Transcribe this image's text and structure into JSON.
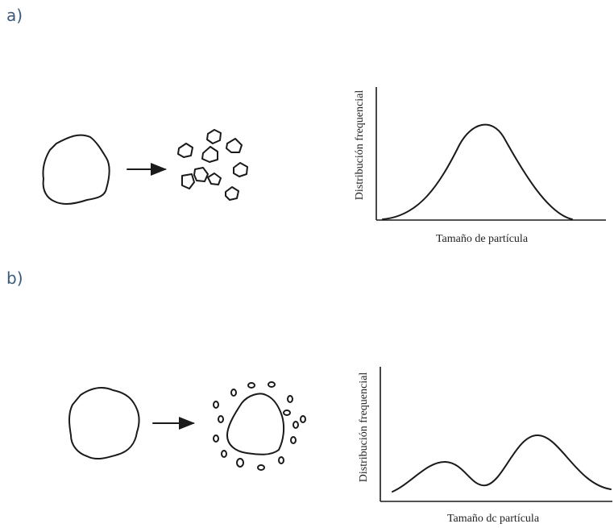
{
  "panels": [
    {
      "label": "a)",
      "graph": {
        "y_label": "Distribución frequencial",
        "x_label": "Tamaño de partícula"
      }
    },
    {
      "label": "b)",
      "graph": {
        "y_label": "Distribución frequencial",
        "x_label": "Tamaño dc partícula"
      }
    }
  ]
}
